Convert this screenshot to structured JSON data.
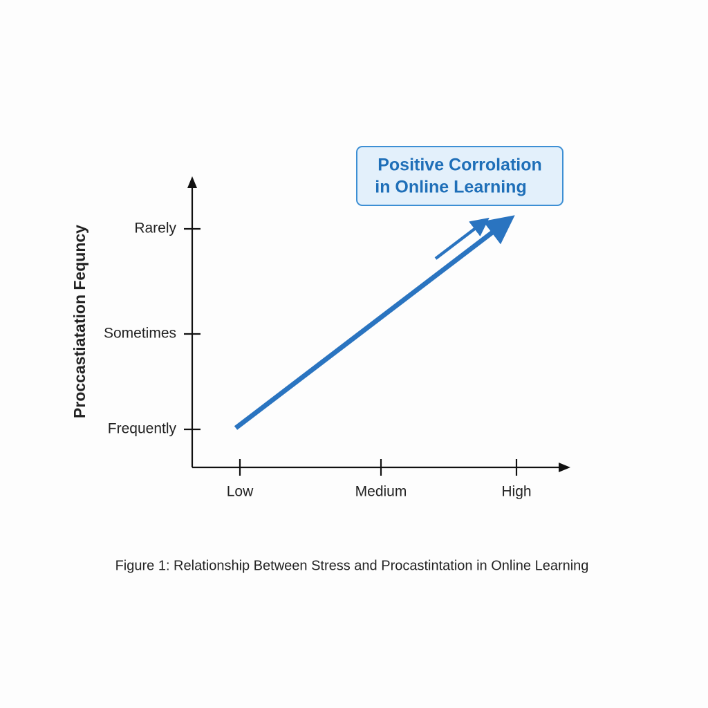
{
  "chart_data": {
    "type": "line",
    "caption": "Figure 1: Relationship Between Stress and Procastintation in Online Learning",
    "y_label": "Proccastiatation Fequncy",
    "categories": [
      "Low",
      "Medium",
      "High"
    ],
    "y_categories": [
      "Frequently",
      "Sometimes",
      "Rarely"
    ],
    "annotation": [
      "Positive Corrolation",
      "in Online Learning"
    ],
    "color": "#2a74c0"
  }
}
